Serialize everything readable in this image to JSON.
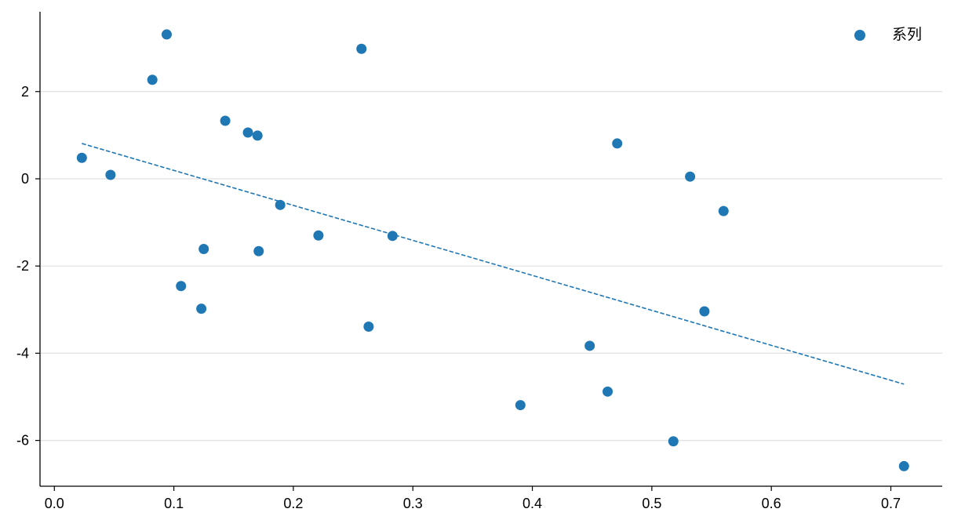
{
  "chart_data": {
    "type": "scatter",
    "title": "",
    "xlabel": "",
    "ylabel": "",
    "xlim": [
      -0.012,
      0.743
    ],
    "ylim": [
      -7.05,
      3.83
    ],
    "xticks": [
      0.0,
      0.1,
      0.2,
      0.3,
      0.4,
      0.5,
      0.6,
      0.7
    ],
    "xtick_labels": [
      "0.0",
      "0.1",
      "0.2",
      "0.3",
      "0.4",
      "0.5",
      "0.6",
      "0.7"
    ],
    "yticks": [
      -6,
      -4,
      -2,
      0,
      2
    ],
    "ytick_labels": [
      "-6",
      "-4",
      "-2",
      "0",
      "2"
    ],
    "grid": {
      "horizontal": true,
      "vertical": false
    },
    "legend": {
      "placement": "top-right",
      "entries": [
        "系列"
      ]
    },
    "series": [
      {
        "name": "系列",
        "color": "#1f77b4",
        "points": [
          {
            "x": 0.023,
            "y": 0.48
          },
          {
            "x": 0.047,
            "y": 0.09
          },
          {
            "x": 0.082,
            "y": 2.27
          },
          {
            "x": 0.094,
            "y": 3.31
          },
          {
            "x": 0.106,
            "y": -2.46
          },
          {
            "x": 0.123,
            "y": -2.98
          },
          {
            "x": 0.125,
            "y": -1.61
          },
          {
            "x": 0.143,
            "y": 1.33
          },
          {
            "x": 0.162,
            "y": 1.06
          },
          {
            "x": 0.17,
            "y": 0.99
          },
          {
            "x": 0.171,
            "y": -1.66
          },
          {
            "x": 0.189,
            "y": -0.6
          },
          {
            "x": 0.221,
            "y": -1.3
          },
          {
            "x": 0.257,
            "y": 2.98
          },
          {
            "x": 0.263,
            "y": -3.39
          },
          {
            "x": 0.283,
            "y": -1.31
          },
          {
            "x": 0.39,
            "y": -5.19
          },
          {
            "x": 0.448,
            "y": -3.83
          },
          {
            "x": 0.463,
            "y": -4.88
          },
          {
            "x": 0.471,
            "y": 0.81
          },
          {
            "x": 0.518,
            "y": -6.02
          },
          {
            "x": 0.532,
            "y": 0.05
          },
          {
            "x": 0.544,
            "y": -3.04
          },
          {
            "x": 0.56,
            "y": -0.74
          },
          {
            "x": 0.711,
            "y": -6.59
          }
        ]
      }
    ],
    "trendline": {
      "style": "dashed",
      "color": "#1f77b4",
      "x": [
        0.023,
        0.711
      ],
      "y": [
        0.81,
        -4.71
      ]
    }
  }
}
